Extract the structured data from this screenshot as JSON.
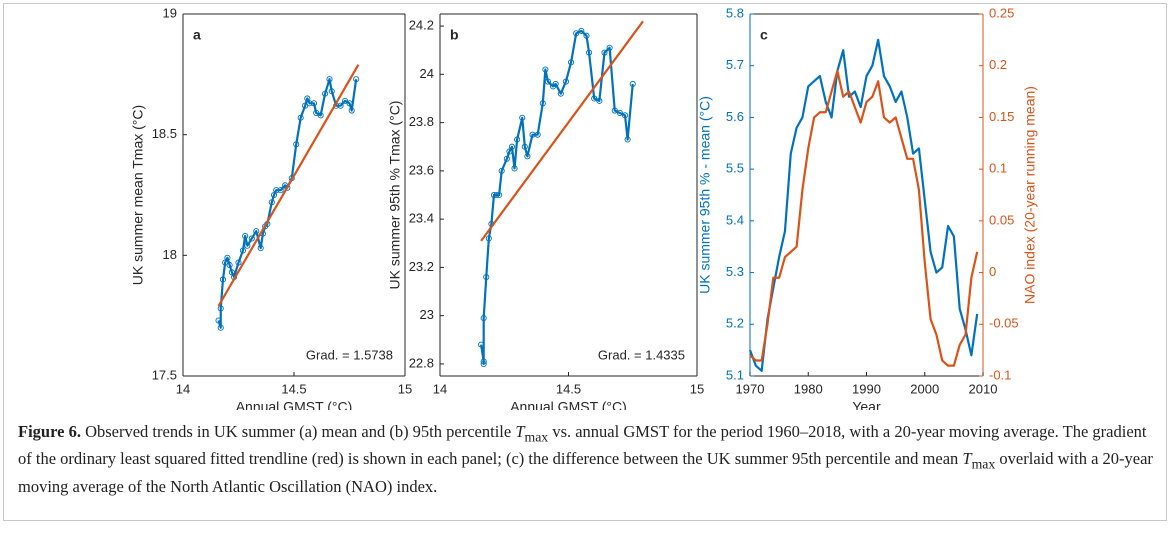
{
  "chart_data": [
    {
      "type": "line",
      "label": "a",
      "annotation": "Grad. = 1.5738",
      "xlabel": "Annual GMST (°C)",
      "ylabel": "UK summer mean Tmax (°C)",
      "xlim": [
        14,
        15
      ],
      "xticks": [
        14,
        14.5,
        15
      ],
      "ylim": [
        17.5,
        19
      ],
      "yticks": [
        17.5,
        18,
        18.5,
        19
      ],
      "series": [
        {
          "color": "#0072bd",
          "marker": "o",
          "x": [
            14.16,
            14.17,
            14.17,
            14.18,
            14.19,
            14.2,
            14.21,
            14.22,
            14.23,
            14.25,
            14.27,
            14.28,
            14.29,
            14.31,
            14.33,
            14.35,
            14.36,
            14.37,
            14.38,
            14.4,
            14.41,
            14.42,
            14.44,
            14.46,
            14.47,
            14.49,
            14.51,
            14.53,
            14.55,
            14.56,
            14.57,
            14.59,
            14.6,
            14.62,
            14.64,
            14.66,
            14.67,
            14.69,
            14.71,
            14.73,
            14.75,
            14.76,
            14.78
          ],
          "values": [
            17.73,
            17.7,
            17.78,
            17.9,
            17.97,
            17.99,
            17.96,
            17.93,
            17.91,
            17.97,
            18.02,
            18.08,
            18.04,
            18.07,
            18.1,
            18.03,
            18.09,
            18.12,
            18.13,
            18.22,
            18.25,
            18.27,
            18.27,
            18.29,
            18.28,
            18.32,
            18.46,
            18.57,
            18.62,
            18.65,
            18.63,
            18.63,
            18.59,
            18.58,
            18.67,
            18.73,
            18.68,
            18.62,
            18.62,
            18.64,
            18.63,
            18.6,
            18.73
          ]
        },
        {
          "color": "#d95319",
          "x": [
            14.16,
            14.79
          ],
          "values": [
            17.79,
            18.79
          ]
        }
      ]
    },
    {
      "type": "line",
      "label": "b",
      "annotation": "Grad. = 1.4335",
      "xlabel": "Annual GMST (°C)",
      "ylabel": "UK summer 95th % Tmax (°C)",
      "xlim": [
        14,
        15
      ],
      "xticks": [
        14,
        14.5,
        15
      ],
      "ylim": [
        22.75,
        24.25
      ],
      "yticks": [
        22.8,
        23,
        23.2,
        23.4,
        23.6,
        23.8,
        24,
        24.2
      ],
      "series": [
        {
          "color": "#0072bd",
          "marker": "o",
          "x": [
            14.16,
            14.17,
            14.17,
            14.17,
            14.18,
            14.19,
            14.2,
            14.21,
            14.22,
            14.23,
            14.24,
            14.26,
            14.27,
            14.28,
            14.29,
            14.3,
            14.32,
            14.33,
            14.34,
            14.36,
            14.38,
            14.4,
            14.41,
            14.42,
            14.44,
            14.45,
            14.47,
            14.49,
            14.51,
            14.53,
            14.55,
            14.57,
            14.58,
            14.6,
            14.62,
            14.64,
            14.66,
            14.68,
            14.7,
            14.72,
            14.73,
            14.75
          ],
          "values": [
            22.88,
            22.81,
            22.8,
            22.99,
            23.16,
            23.32,
            23.38,
            23.5,
            23.5,
            23.5,
            23.6,
            23.65,
            23.68,
            23.7,
            23.61,
            23.73,
            23.82,
            23.7,
            23.66,
            23.75,
            23.75,
            23.88,
            24.02,
            23.97,
            23.95,
            23.96,
            23.92,
            23.97,
            24.05,
            24.17,
            24.18,
            24.16,
            24.09,
            23.9,
            23.89,
            24.09,
            24.11,
            23.85,
            23.84,
            23.83,
            23.73,
            23.96
          ]
        },
        {
          "color": "#d95319",
          "x": [
            14.16,
            14.79
          ],
          "values": [
            23.31,
            24.22
          ]
        }
      ]
    },
    {
      "type": "line",
      "label": "c",
      "xlabel": "Year",
      "ylabel": "UK summer 95th % - mean (°C)",
      "y2label": "NAO index (20-year running mean)",
      "xlim": [
        1970,
        2010
      ],
      "xticks": [
        1970,
        1980,
        1990,
        2000,
        2010
      ],
      "ylim": [
        5.1,
        5.8
      ],
      "yticks": [
        5.1,
        5.2,
        5.3,
        5.4,
        5.5,
        5.6,
        5.7,
        5.8
      ],
      "y2lim": [
        -0.1,
        0.25
      ],
      "y2ticks": [
        -0.1,
        -0.05,
        0,
        0.05,
        0.1,
        0.15,
        0.2,
        0.25
      ],
      "x": [
        1970,
        1971,
        1972,
        1973,
        1974,
        1975,
        1976,
        1977,
        1978,
        1979,
        1980,
        1981,
        1982,
        1983,
        1984,
        1985,
        1986,
        1987,
        1988,
        1989,
        1990,
        1991,
        1992,
        1993,
        1994,
        1995,
        1996,
        1997,
        1998,
        1999,
        2000,
        2001,
        2002,
        2003,
        2004,
        2005,
        2006,
        2007,
        2008,
        2009
      ],
      "series": [
        {
          "color": "#0072bd",
          "values": [
            5.15,
            5.12,
            5.11,
            5.21,
            5.27,
            5.33,
            5.38,
            5.53,
            5.58,
            5.6,
            5.66,
            5.67,
            5.68,
            5.63,
            5.6,
            5.69,
            5.73,
            5.64,
            5.65,
            5.62,
            5.68,
            5.7,
            5.75,
            5.68,
            5.66,
            5.63,
            5.65,
            5.6,
            5.53,
            5.54,
            5.44,
            5.34,
            5.3,
            5.31,
            5.39,
            5.37,
            5.23,
            5.19,
            5.14,
            5.22
          ]
        },
        {
          "color": "#d95319",
          "axis": "y2",
          "values": [
            -0.08,
            -0.085,
            -0.085,
            -0.05,
            -0.005,
            -0.005,
            0.015,
            0.02,
            0.025,
            0.08,
            0.12,
            0.15,
            0.155,
            0.155,
            0.175,
            0.195,
            0.17,
            0.175,
            0.16,
            0.145,
            0.165,
            0.17,
            0.185,
            0.15,
            0.145,
            0.15,
            0.13,
            0.11,
            0.11,
            0.08,
            0.01,
            -0.045,
            -0.06,
            -0.085,
            -0.09,
            -0.09,
            -0.07,
            -0.06,
            -0.005,
            0.02
          ]
        }
      ]
    }
  ],
  "caption": {
    "label": "Figure 6.",
    "parts": [
      " Observed trends in UK summer (a) mean and (b) 95th percentile ",
      "T",
      "max",
      " vs. annual GMST for the period 1960–2018, with a 20-year moving average. The gradient of the ordinary least squared fitted trendline (red) is shown in each panel; (c) the difference between the UK summer 95th percentile and mean ",
      "T",
      "max",
      " overlaid with a 20-year moving average of the North Atlantic Oscillation (NAO) index."
    ]
  }
}
